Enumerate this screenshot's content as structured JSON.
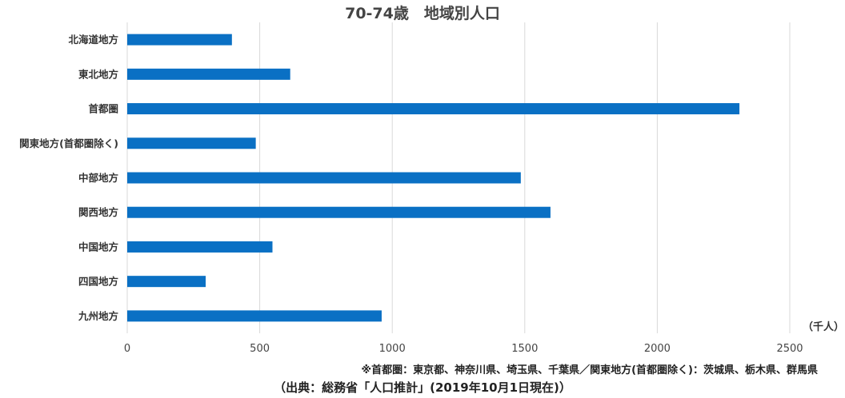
{
  "chart_data": {
    "type": "bar",
    "orientation": "horizontal",
    "title": "70-74歳　地域別人口",
    "categories": [
      "北海道地方",
      "東北地方",
      "首都圏",
      "関東地方(首都圏除く)",
      "中部地方",
      "関西地方",
      "中国地方",
      "四国地方",
      "九州地方"
    ],
    "values": [
      395,
      615,
      2310,
      485,
      1485,
      1597,
      548,
      296,
      960
    ],
    "xlim": [
      0,
      2500
    ],
    "xticks": [
      "0",
      "500",
      "1000",
      "1500",
      "2000",
      "2500"
    ],
    "unit_label": "（千人）",
    "grid": true,
    "bar_color": "#0a70c4"
  },
  "note": "※首都圏：東京都、神奈川県、埼玉県、千葉県／関東地方(首都圏除く)：茨城県、栃木県、群馬県",
  "source": "（出典：総務省「人口推計」(2019年10月1日現在)）"
}
